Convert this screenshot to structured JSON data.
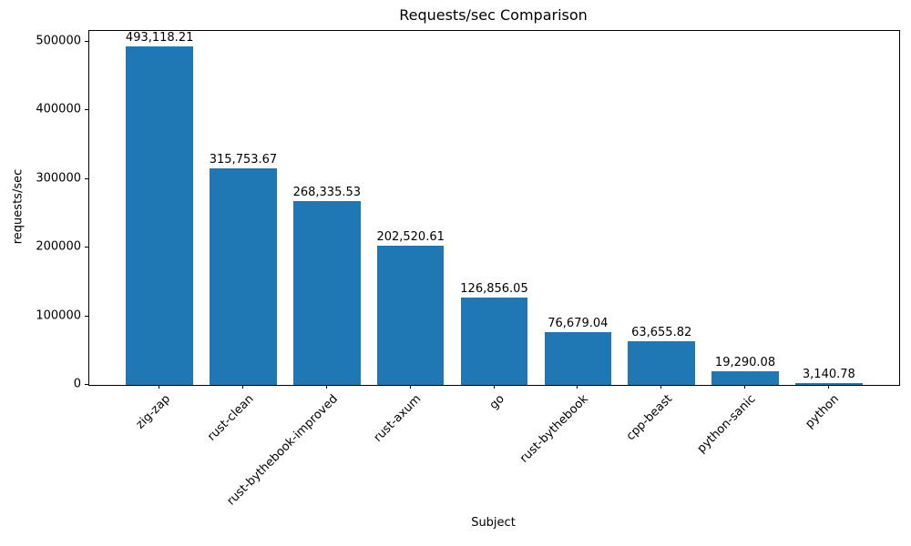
{
  "chart_data": {
    "type": "bar",
    "title": "Requests/sec Comparison",
    "xlabel": "Subject",
    "ylabel": "requests/sec",
    "categories": [
      "zig-zap",
      "rust-clean",
      "rust-bythebook-improved",
      "rust-axum",
      "go",
      "rust-bythebook",
      "cpp-beast",
      "python-sanic",
      "python"
    ],
    "values": [
      493118.21,
      315753.67,
      268335.53,
      202520.61,
      126856.05,
      76679.04,
      63655.82,
      19290.08,
      3140.78
    ],
    "value_labels": [
      "493,118.21",
      "315,753.67",
      "268,335.53",
      "202,520.61",
      "126,856.05",
      "76,679.04",
      "63,655.82",
      "19,290.08",
      "3,140.78"
    ],
    "ytick_labels": [
      "0",
      "100000",
      "200000",
      "300000",
      "400000",
      "500000"
    ],
    "yticks": [
      0,
      100000,
      200000,
      300000,
      400000,
      500000
    ],
    "ylim": [
      0,
      515900
    ],
    "bar_color": "#1f77b4",
    "grid": false,
    "legend": null
  }
}
